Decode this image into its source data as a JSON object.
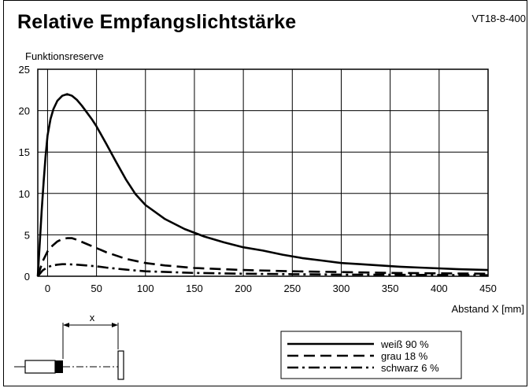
{
  "header": {
    "title": "Relative Empfangslichtstärke",
    "code": "VT18-8-400"
  },
  "chart_data": {
    "type": "line",
    "title": "Relative Empfangslichtstärke",
    "ylabel": "Funktionsreserve",
    "xlabel": "Abstand X [mm]",
    "xlim": [
      -10,
      450
    ],
    "ylim": [
      0,
      25
    ],
    "xticks": [
      0,
      50,
      100,
      150,
      200,
      250,
      300,
      350,
      400,
      450
    ],
    "yticks": [
      0,
      5,
      10,
      15,
      20,
      25
    ],
    "grid": true,
    "legend_position": "bottom-right",
    "series": [
      {
        "name": "weiß 90 %",
        "dash": "solid",
        "x": [
          -10,
          -8,
          -6,
          -4,
          -2,
          0,
          3,
          6,
          10,
          15,
          20,
          25,
          30,
          35,
          40,
          45,
          50,
          60,
          70,
          80,
          90,
          100,
          120,
          140,
          160,
          180,
          200,
          220,
          240,
          260,
          280,
          300,
          320,
          340,
          360,
          380,
          400,
          420,
          450
        ],
        "y": [
          0,
          4,
          8,
          11.5,
          14.5,
          17,
          19,
          20.2,
          21.2,
          21.8,
          22,
          21.8,
          21.3,
          20.6,
          19.8,
          19,
          18.1,
          16,
          13.8,
          11.7,
          9.9,
          8.6,
          6.9,
          5.7,
          4.8,
          4.1,
          3.5,
          3.1,
          2.6,
          2.2,
          1.9,
          1.6,
          1.45,
          1.3,
          1.15,
          1.05,
          0.95,
          0.85,
          0.75
        ]
      },
      {
        "name": "grau 18 %",
        "dash": "dashed",
        "x": [
          -10,
          -5,
          0,
          5,
          10,
          15,
          20,
          25,
          30,
          40,
          50,
          60,
          70,
          80,
          100,
          120,
          150,
          200,
          250,
          300,
          350,
          400,
          450
        ],
        "y": [
          0,
          1.8,
          3,
          3.7,
          4.2,
          4.5,
          4.6,
          4.6,
          4.4,
          3.9,
          3.4,
          2.9,
          2.5,
          2.1,
          1.6,
          1.3,
          1.0,
          0.75,
          0.6,
          0.5,
          0.4,
          0.35,
          0.3
        ]
      },
      {
        "name": "schwarz 6 %",
        "dash": "dashdot",
        "x": [
          -10,
          -5,
          0,
          5,
          10,
          15,
          20,
          30,
          40,
          50,
          60,
          80,
          100,
          150,
          200,
          250,
          300,
          350,
          400,
          450
        ],
        "y": [
          0,
          0.7,
          1.1,
          1.3,
          1.4,
          1.45,
          1.45,
          1.4,
          1.3,
          1.2,
          1.05,
          0.8,
          0.6,
          0.4,
          0.3,
          0.25,
          0.2,
          0.18,
          0.15,
          0.12
        ]
      }
    ]
  },
  "diagram": {
    "distance_label": "x"
  }
}
